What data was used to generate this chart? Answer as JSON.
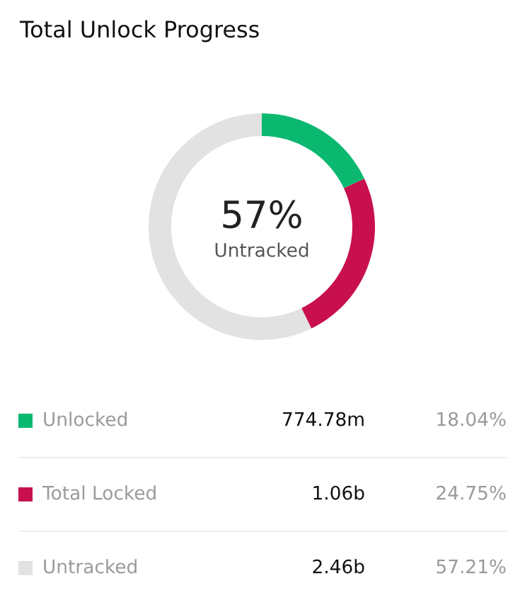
{
  "chart_data": {
    "type": "donut",
    "title": "Total Unlock Progress",
    "categories": [
      "Unlocked",
      "Total Locked",
      "Untracked"
    ],
    "values": [
      18.04,
      24.75,
      57.21
    ],
    "colors": [
      "#0bb870",
      "#c8104f",
      "#e2e2e2"
    ],
    "value_labels": [
      "18.04%",
      "24.75%",
      "57.21%"
    ],
    "annotations": [
      "57%",
      "Untracked",
      "774.78m",
      "1.06b",
      "2.46b"
    ],
    "legend": "bottom"
  }
}
